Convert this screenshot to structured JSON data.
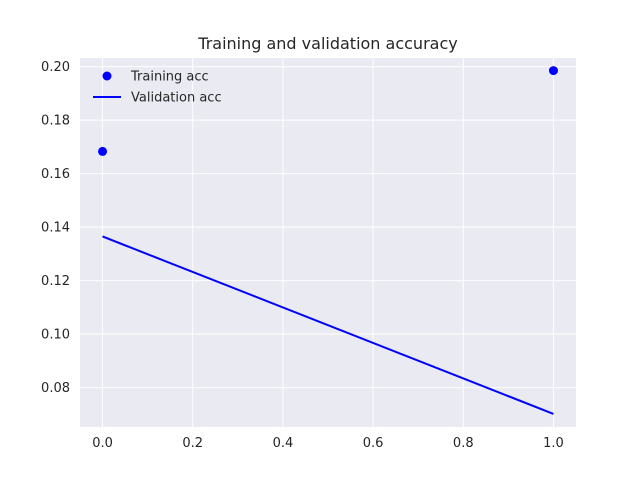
{
  "chart_data": {
    "type": "line",
    "title": "Training and validation accuracy",
    "xlabel": "",
    "ylabel": "",
    "xlim": [
      -0.05,
      1.05
    ],
    "ylim": [
      0.0653,
      0.2032
    ],
    "xticks": [
      0.0,
      0.2,
      0.4,
      0.6,
      0.8,
      1.0
    ],
    "xtick_labels": [
      "0.0",
      "0.2",
      "0.4",
      "0.6",
      "0.8",
      "1.0"
    ],
    "yticks": [
      0.08,
      0.1,
      0.12,
      0.14,
      0.16,
      0.18,
      0.2
    ],
    "ytick_labels": [
      "0.08",
      "0.10",
      "0.12",
      "0.14",
      "0.16",
      "0.18",
      "0.20"
    ],
    "grid": true,
    "legend_position": "top-left",
    "series": [
      {
        "name": "Training acc",
        "style": "markers",
        "color": "#0000ff",
        "x": [
          0,
          1
        ],
        "y": [
          0.1683,
          0.1985
        ]
      },
      {
        "name": "Validation acc",
        "style": "line",
        "color": "#0000ff",
        "x": [
          0,
          1
        ],
        "y": [
          0.1365,
          0.0702
        ]
      }
    ]
  }
}
